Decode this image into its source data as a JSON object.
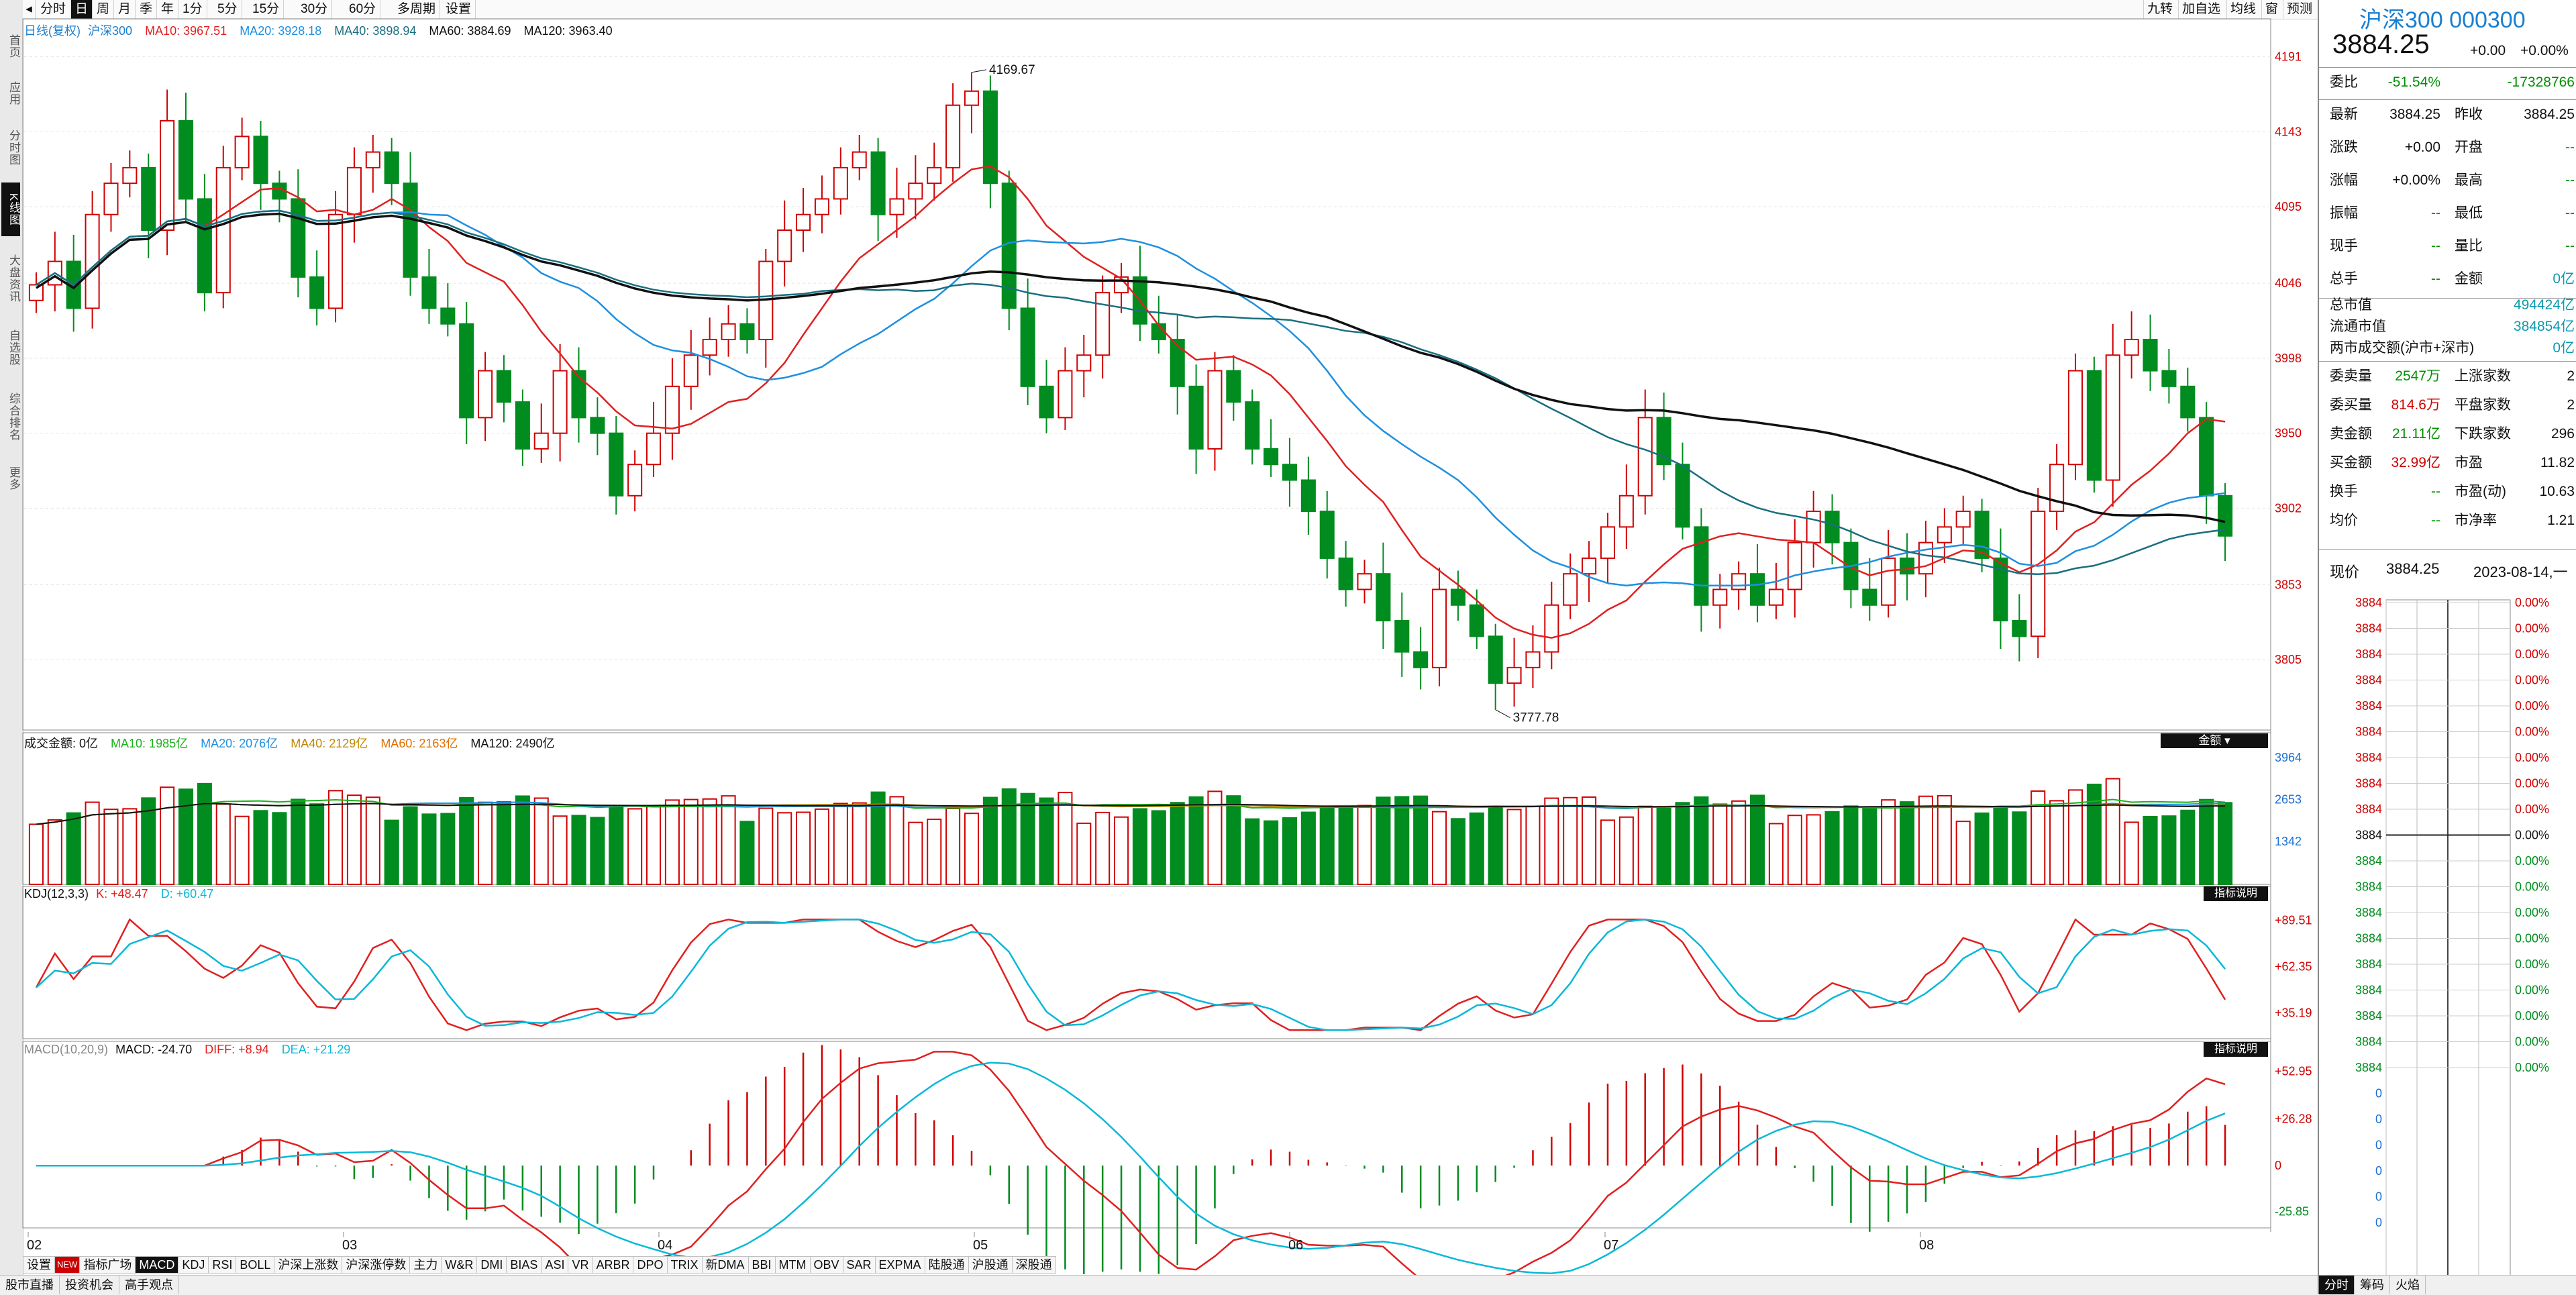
{
  "toolbar": {
    "items": [
      "分时",
      "日",
      "周",
      "月",
      "季",
      "年",
      "1分",
      "5分",
      "15分",
      "30分",
      "60分",
      "多周期",
      "设置"
    ],
    "selected": "日",
    "right_items": [
      "九转",
      "加自选",
      "均线",
      "窗",
      "预测"
    ]
  },
  "rail": {
    "items": [
      "首页",
      "应用",
      "分时图",
      "K线图",
      "大盘资讯",
      "自选股",
      "综合排名",
      "更多"
    ],
    "selected": "K线图"
  },
  "main_header": {
    "label": "日线(复权)",
    "name": "沪深300",
    "ma10": "MA10: 3967.51",
    "ma20": "MA20: 3928.18",
    "ma40": "MA40: 3898.94",
    "ma60": "MA60: 3884.69",
    "ma120": "MA120: 3963.40"
  },
  "vol_header": {
    "label": "成交金额: 0亿",
    "ma10": "MA10: 1985亿",
    "ma20": "MA20: 2076亿",
    "ma40": "MA40: 2129亿",
    "ma60": "MA60: 2163亿",
    "ma120": "MA120: 2490亿",
    "badge": "金额"
  },
  "kdj_header": {
    "label": "KDJ(12,3,3)",
    "k": "K: +48.47",
    "d": "D: +60.47",
    "badge": "指标说明"
  },
  "macd_header": {
    "label": "MACD(10,20,9)",
    "macd": "MACD: -24.70",
    "diff": "DIFF: +8.94",
    "dea": "DEA: +21.29",
    "badge": "指标说明"
  },
  "colors": {
    "up": "#d00000",
    "down": "#008c1e",
    "ma10": "#e02020",
    "ma20": "#1e90e0",
    "ma40": "#1a6f80",
    "ma60": "#111111",
    "ma120": "#000000"
  },
  "price_axis": [
    "4191",
    "4143",
    "4095",
    "4046",
    "3998",
    "3950",
    "3902",
    "3853",
    "3805"
  ],
  "vol_axis": [
    "3964",
    "2653",
    "1342"
  ],
  "kdj_axis": [
    "+89.51",
    "+62.35",
    "+35.19"
  ],
  "macd_axis": [
    "+52.95",
    "+26.28",
    "0",
    "-25.85"
  ],
  "x_dates": [
    "02",
    "03",
    "04",
    "05",
    "06",
    "07",
    "08"
  ],
  "annotations": {
    "high": "4169.67",
    "low": "3777.78"
  },
  "bottom_tabs": [
    "设置",
    "指标广场",
    "MACD",
    "KDJ",
    "RSI",
    "BOLL",
    "沪深上涨数",
    "沪深涨停数",
    "主力",
    "W&R",
    "DMI",
    "BIAS",
    "ASI",
    "VR",
    "ARBR",
    "DPO",
    "TRIX",
    "新DMA",
    "BBI",
    "MTM",
    "OBV",
    "SAR",
    "EXPMA",
    "陆股通",
    "沪股通",
    "深股通"
  ],
  "bottom_tab_new": "NEW",
  "bottom_selected": "MACD",
  "status_items": [
    "股市直播",
    "投资机会",
    "高手观点"
  ],
  "right": {
    "title": "沪深300 000300",
    "price": "3884.25",
    "change": "+0.00",
    "change_pct": "+0.00%",
    "rows1": [
      {
        "k": "委比",
        "v1": "-51.54%",
        "k2": "",
        "v2": "-17328766"
      }
    ],
    "rows2": [
      {
        "k": "最新",
        "v1": "3884.25",
        "k2": "昨收",
        "v2": "3884.25"
      },
      {
        "k": "涨跌",
        "v1": "+0.00",
        "k2": "开盘",
        "v2": "--"
      },
      {
        "k": "涨幅",
        "v1": "+0.00%",
        "k2": "最高",
        "v2": "--"
      },
      {
        "k": "振幅",
        "v1": "--",
        "k2": "最低",
        "v2": "--"
      },
      {
        "k": "现手",
        "v1": "--",
        "k2": "量比",
        "v2": "--"
      },
      {
        "k": "总手",
        "v1": "--",
        "k2": "金额",
        "v2": "0亿"
      }
    ],
    "rows3": [
      {
        "k": "总市值",
        "v2": "494424亿"
      },
      {
        "k": "流通市值",
        "v2": "384854亿"
      },
      {
        "k": "两市成交额(沪市+深市)",
        "v2": "0亿"
      }
    ],
    "rows4": [
      {
        "k": "委卖量",
        "v1": "2547万",
        "k2": "上涨家数",
        "v2": "2"
      },
      {
        "k": "委买量",
        "v1": "814.6万",
        "k2": "平盘家数",
        "v2": "2"
      },
      {
        "k": "卖金额",
        "v1": "21.11亿",
        "k2": "下跌家数",
        "v2": "296"
      },
      {
        "k": "买金额",
        "v1": "32.99亿",
        "k2": "市盈",
        "v2": "11.82"
      },
      {
        "k": "换手",
        "v1": "--",
        "k2": "市盈(动)",
        "v2": "10.63"
      },
      {
        "k": "均价",
        "v1": "--",
        "k2": "市净率",
        "v2": "1.21"
      }
    ],
    "now_label": "现价",
    "now_price": "3884.25",
    "now_date": "2023-08-14,一",
    "mini_left": [
      "3884",
      "3884",
      "3884",
      "3884",
      "3884",
      "3884",
      "3884",
      "3884",
      "3884",
      "3884",
      "3884",
      "3884",
      "3884",
      "3884",
      "3884",
      "3884",
      "3884",
      "3884",
      "3884",
      "0",
      "0",
      "0",
      "0",
      "0",
      "0"
    ],
    "mini_right": [
      "0.00%",
      "0.00%",
      "0.00%",
      "0.00%",
      "0.00%",
      "0.00%",
      "0.00%",
      "0.00%",
      "0.00%",
      "0.00%",
      "0.00%",
      "0.00%",
      "0.00%",
      "0.00%",
      "0.00%",
      "0.00%",
      "0.00%",
      "0.00%",
      "0.00%"
    ],
    "bottom_tabs": [
      "分时",
      "筹码",
      "火焰"
    ]
  },
  "chart_data": {
    "type": "candlestick",
    "title": "沪深300 日线(复权)",
    "period": "2023-01 to 2023-08-14",
    "ylim": [
      3777.78,
      4191
    ],
    "high": 4169.67,
    "low": 3777.78,
    "closes": [
      4045,
      4060,
      4030,
      4090,
      4110,
      4120,
      4080,
      4150,
      4100,
      4040,
      4120,
      4140,
      4110,
      4100,
      4050,
      4030,
      4090,
      4120,
      4130,
      4110,
      4050,
      4030,
      4020,
      3960,
      3990,
      3970,
      3940,
      3950,
      3990,
      3960,
      3950,
      3910,
      3930,
      3950,
      3980,
      4000,
      4010,
      4020,
      4010,
      4060,
      4080,
      4090,
      4100,
      4120,
      4130,
      4090,
      4100,
      4110,
      4120,
      4160,
      4169,
      4110,
      4030,
      3980,
      3960,
      3990,
      4000,
      4040,
      4050,
      4020,
      4010,
      3980,
      3940,
      3990,
      3970,
      3940,
      3930,
      3920,
      3900,
      3870,
      3850,
      3860,
      3830,
      3810,
      3800,
      3850,
      3840,
      3820,
      3790,
      3800,
      3810,
      3840,
      3860,
      3870,
      3890,
      3910,
      3960,
      3930,
      3890,
      3840,
      3850,
      3860,
      3840,
      3850,
      3880,
      3900,
      3880,
      3850,
      3840,
      3870,
      3860,
      3880,
      3890,
      3900,
      3870,
      3830,
      3820,
      3900,
      3930,
      3990,
      3920,
      4000,
      4010,
      3990,
      3980,
      3960,
      3910,
      3884.25
    ]
  }
}
